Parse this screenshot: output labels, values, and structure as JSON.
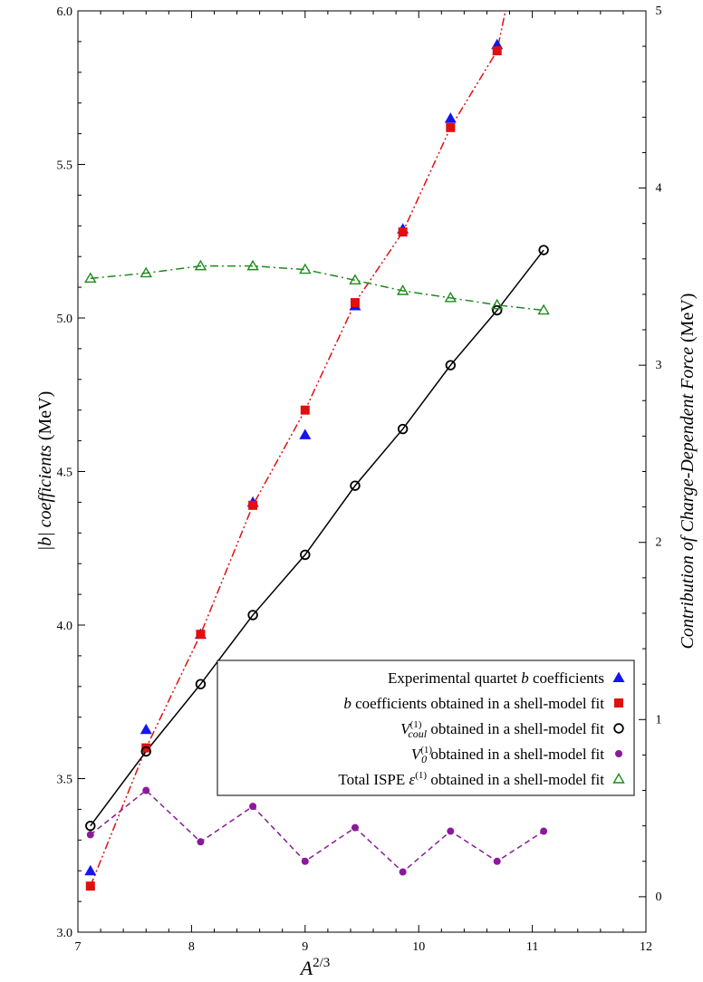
{
  "chart_data": {
    "type": "line",
    "title": "",
    "x_axis": {
      "label_base": "A",
      "label_sup": "2/3",
      "range": [
        7,
        12
      ],
      "ticks": [
        "7",
        "8",
        "9",
        "10",
        "11",
        "12"
      ]
    },
    "y_axis_left": {
      "label_math": "|b|",
      "label_italic": " coefficients",
      "label_unit": " (MeV)",
      "range": [
        3.0,
        6.0
      ],
      "ticks": [
        "3.0",
        "3.5",
        "4.0",
        "4.5",
        "5.0",
        "5.5",
        "6.0"
      ]
    },
    "y_axis_right": {
      "label_italic": "Contribution of Charge-Dependent Force",
      "label_unit": " (MeV)",
      "range": [
        -0.2,
        5
      ],
      "ticks": [
        "0",
        "1",
        "2",
        "3",
        "4",
        "5"
      ]
    },
    "legend_placement": "lower-right",
    "grid": false,
    "series": [
      {
        "name": "Experimental quartet b coefficients",
        "axis": "left",
        "marker": "filled-triangle",
        "color": "#1515ee",
        "line": "none",
        "x": [
          7.11,
          7.6,
          8.08,
          8.54,
          9.0,
          9.44,
          9.86,
          10.28,
          10.69
        ],
        "y": [
          3.2,
          3.66,
          3.97,
          4.4,
          4.62,
          5.04,
          5.29,
          5.65,
          5.89
        ]
      },
      {
        "name": "b coefficients obtained in a shell-model fit",
        "axis": "left",
        "marker": "filled-square",
        "color": "#e01010",
        "line": "dash-dot-dot",
        "x": [
          7.11,
          7.6,
          8.08,
          8.54,
          9.0,
          9.44,
          9.86,
          10.28,
          10.69
        ],
        "y": [
          3.15,
          3.6,
          3.97,
          4.39,
          4.7,
          5.05,
          5.28,
          5.62,
          5.87
        ],
        "line_extension": [
          11.1,
          6.6
        ]
      },
      {
        "name": "V_coul^(1) obtained in a shell-model fit",
        "axis": "right",
        "marker": "open-circle",
        "color": "#000000",
        "line": "solid",
        "x": [
          7.11,
          7.6,
          8.08,
          8.54,
          9.0,
          9.44,
          9.86,
          10.28,
          10.69,
          11.1
        ],
        "y": [
          0.4,
          0.82,
          1.2,
          1.59,
          1.93,
          2.32,
          2.64,
          3.0,
          3.31,
          3.65
        ]
      },
      {
        "name": "V_0^(1) obtained in a shell-model fit",
        "axis": "right",
        "marker": "filled-circle",
        "color": "#8a1a9a",
        "line": "dashed",
        "x": [
          7.11,
          7.6,
          8.08,
          8.54,
          9.0,
          9.44,
          9.86,
          10.28,
          10.69,
          11.1
        ],
        "y": [
          0.35,
          0.6,
          0.31,
          0.51,
          0.2,
          0.39,
          0.14,
          0.37,
          0.2,
          0.37
        ]
      },
      {
        "name": "Total ISPE ε^(1) obtained in a shell-model fit",
        "axis": "right",
        "marker": "open-triangle",
        "color": "#1f8a1f",
        "line": "dash-dot",
        "x": [
          7.11,
          7.6,
          8.08,
          8.54,
          9.0,
          9.44,
          9.86,
          10.28,
          10.69,
          11.1
        ],
        "y": [
          3.49,
          3.52,
          3.56,
          3.56,
          3.54,
          3.48,
          3.42,
          3.38,
          3.34,
          3.31
        ]
      }
    ],
    "legend": [
      {
        "pre_italic": "",
        "text": "Experimental quartet ",
        "post_italic": "b",
        "rest": " coefficients"
      },
      {
        "pre_italic": "b",
        "text": " coefficients obtained in a shell-model fit"
      },
      {
        "sym_main": "V",
        "sym_sub": "coul",
        "sym_sup": "(1)",
        "text": " obtained in a shell-model fit"
      },
      {
        "sym_main": "V",
        "sym_sub": "0",
        "sym_sup": "(1)",
        "text": " obtained in a shell-model fit"
      },
      {
        "prefix": "Total ISPE ",
        "sym_main": "ε",
        "sym_sup": "(1)",
        "text": " obtained in a shell-model fit"
      }
    ]
  }
}
